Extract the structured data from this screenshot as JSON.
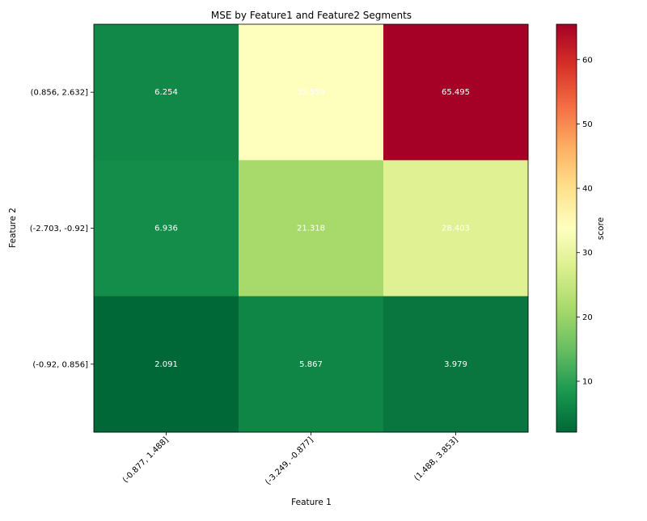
{
  "chart_data": {
    "type": "heatmap",
    "title": "MSE by Feature1 and Feature2 Segments",
    "xlabel": "Feature 1",
    "ylabel": "Feature 2",
    "x_categories": [
      "(-0.877, 1.488]",
      "(-3.249, -0.877]",
      "(1.488, 3.853]"
    ],
    "y_categories": [
      "(0.856, 2.632]",
      "(-2.703, -0.92]",
      "(-0.92, 0.856]"
    ],
    "values": [
      [
        6.254,
        33.559,
        65.495
      ],
      [
        6.936,
        21.318,
        28.403
      ],
      [
        2.091,
        5.867,
        3.979
      ]
    ],
    "cell_labels": [
      [
        "6.254",
        "33.559",
        "65.495"
      ],
      [
        "6.936",
        "21.318",
        "28.403"
      ],
      [
        "2.091",
        "5.867",
        "3.979"
      ]
    ],
    "colorbar": {
      "label": "score",
      "colormap": "RdYlGn_r",
      "range": [
        2.091,
        65.495
      ],
      "ticks": [
        10,
        20,
        30,
        40,
        50,
        60
      ],
      "tick_labels": [
        "10",
        "20",
        "30",
        "40",
        "50",
        "60"
      ]
    }
  }
}
